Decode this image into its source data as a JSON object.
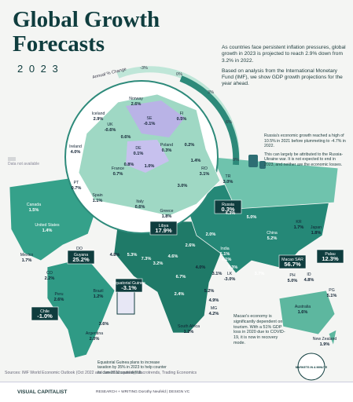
{
  "header": {
    "title": "Global Growth Forecasts",
    "year": "2 0 2 3"
  },
  "intro": [
    "As countries face persistent inflation pressures, global growth in 2023 is projected to reach 2.9% down from 3.2% in 2022.",
    "Based on analysis from the International Monetary Fund (IMF), we show GDP growth projections for the year ahead."
  ],
  "legend": {
    "title": "Annual % Change",
    "ticks": [
      "-3%",
      "0%",
      "3%",
      "6%",
      "9%"
    ],
    "no_data": "Data not available"
  },
  "notes": {
    "russia": [
      "Russia's economic growth reached a high of 10.5% in 2021 before plummeting to -4.7% in 2022.",
      "This can largely be attributed to the Russia-Ukraine war. It is not expected to end in 2023, and neither are the economic losses."
    ],
    "macao": "Macao's economy is significantly dependent on tourism. With a 51% GDP loss in 2020 due to COVID-19, it is now in recovery mode.",
    "equatorial_guinea": "Equatorial Guinea plans to increase taxation by 35% in 2023 to help counter its current account deficit."
  },
  "regions": [
    {
      "name": "Norway",
      "value": "2.6%"
    },
    {
      "name": "Iceland",
      "value": "2.9%"
    },
    {
      "name": "UK",
      "value": "-0.6%"
    },
    {
      "name": "SE",
      "value": "-0.1%"
    },
    {
      "name": "FI",
      "value": "0.5%"
    },
    {
      "name": "Ireland",
      "value": "4.0%"
    },
    {
      "name": "DE",
      "value": "0.1%"
    },
    {
      "name": "Poland",
      "value": "0.3%"
    },
    {
      "value": "0.6%"
    },
    {
      "value": "0.2%"
    },
    {
      "value": "0.8%"
    },
    {
      "value": "1.0%"
    },
    {
      "name": "France",
      "value": "0.7%"
    },
    {
      "name": "RO",
      "value": "3.1%"
    },
    {
      "value": "3.0%"
    },
    {
      "value": "1.4%"
    },
    {
      "name": "PT",
      "value": "0.7%"
    },
    {
      "name": "Spain",
      "value": "1.1%"
    },
    {
      "name": "Italy",
      "value": "0.6%"
    },
    {
      "name": "TR",
      "value": "3.0%"
    },
    {
      "name": "Greece",
      "value": "1.8%"
    },
    {
      "name": "Russia",
      "value": "0.3%"
    },
    {
      "name": "Canada",
      "value": "1.5%"
    },
    {
      "name": "United States",
      "value": "1.4%"
    },
    {
      "name": "Mexico",
      "value": "1.7%"
    },
    {
      "name": "DO",
      "value": "4.5%"
    },
    {
      "name": "CO",
      "value": "2.2%"
    },
    {
      "name": "Guyana",
      "value": "25.2%"
    },
    {
      "name": "Peru",
      "value": "2.6%"
    },
    {
      "name": "Brazil",
      "value": "1.2%"
    },
    {
      "name": "Chile",
      "value": "-1.0%"
    },
    {
      "value": "3.6%"
    },
    {
      "name": "Argentina",
      "value": "2.0%"
    },
    {
      "name": "Libya",
      "value": "17.9%"
    },
    {
      "value": "1.6%"
    },
    {
      "value": "4.8%"
    },
    {
      "value": "5.3%"
    },
    {
      "value": "7.3%"
    },
    {
      "value": "3.2%"
    },
    {
      "value": "4.6%"
    },
    {
      "value": "2.6%"
    },
    {
      "name": "Equatorial Guinea",
      "value": "-3.1%"
    },
    {
      "value": "6.7%"
    },
    {
      "value": "4.0%"
    },
    {
      "value": "3.1%"
    },
    {
      "value": "2.4%"
    },
    {
      "value": "5.2%"
    },
    {
      "value": "4.9%"
    },
    {
      "name": "MG",
      "value": "4.2%"
    },
    {
      "name": "South Africa",
      "value": "1.2%"
    },
    {
      "value": "2.0%"
    },
    {
      "value": "4.3%"
    },
    {
      "value": "5.0%"
    },
    {
      "name": "India",
      "value": "6.1%"
    },
    {
      "value": "4.1%"
    },
    {
      "value": "3.3%"
    },
    {
      "name": "China",
      "value": "5.2%"
    },
    {
      "name": "Macao SAR",
      "value": "56.7%"
    },
    {
      "name": "LK",
      "value": "-3.0%"
    },
    {
      "value": "3.7%"
    },
    {
      "name": "KR",
      "value": "1.7%"
    },
    {
      "name": "Japan",
      "value": "1.8%"
    },
    {
      "name": "Palau",
      "value": "12.3%"
    },
    {
      "name": "PH",
      "value": "5.0%"
    },
    {
      "name": "ID",
      "value": "4.8%"
    },
    {
      "name": "PG",
      "value": "5.1%"
    },
    {
      "name": "Australia",
      "value": "1.6%"
    },
    {
      "name": "New Zealand",
      "value": "1.9%"
    }
  ],
  "sources": "Sources: IMF World Economic Outlook (Oct 2022 and Jan 2023 update), Macrotrends, Trading Economics",
  "footer": {
    "brand": "VISUAL CAPITALIST",
    "credits": "RESEARCH + WRITING Dorothy Neufeld  |  DESIGN VC",
    "badge": "MARKETS IN A MINUTE"
  }
}
